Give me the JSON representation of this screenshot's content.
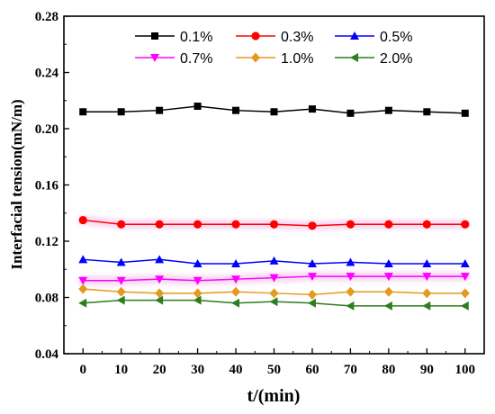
{
  "chart_data": {
    "type": "line",
    "xlabel": "t/(min)",
    "ylabel": "Interfacial tension(mN/m)",
    "xlim": [
      -5,
      105
    ],
    "ylim": [
      0.04,
      0.28
    ],
    "x": [
      0,
      10,
      20,
      30,
      40,
      50,
      60,
      70,
      80,
      90,
      100
    ],
    "xticks": [
      "0",
      "10",
      "20",
      "30",
      "40",
      "50",
      "60",
      "70",
      "80",
      "90",
      "100"
    ],
    "yticks": [
      "0.04",
      "0.08",
      "0.12",
      "0.16",
      "0.20",
      "0.24",
      "0.28"
    ],
    "grid": false,
    "legend_position": "top-center",
    "series": [
      {
        "name": "0.1%",
        "color": "#000000",
        "marker": "square",
        "values": [
          0.212,
          0.212,
          0.213,
          0.216,
          0.213,
          0.212,
          0.214,
          0.211,
          0.213,
          0.212,
          0.211
        ]
      },
      {
        "name": "0.3%",
        "color": "#ff0000",
        "marker": "circle",
        "values": [
          0.135,
          0.132,
          0.132,
          0.132,
          0.132,
          0.132,
          0.131,
          0.132,
          0.132,
          0.132,
          0.132
        ]
      },
      {
        "name": "0.5%",
        "color": "#0000ff",
        "marker": "triangle-up",
        "values": [
          0.107,
          0.105,
          0.107,
          0.104,
          0.104,
          0.106,
          0.104,
          0.105,
          0.104,
          0.104,
          0.104
        ]
      },
      {
        "name": "0.7%",
        "color": "#ff00ff",
        "marker": "triangle-down",
        "values": [
          0.092,
          0.092,
          0.093,
          0.092,
          0.093,
          0.094,
          0.095,
          0.095,
          0.095,
          0.095,
          0.095
        ]
      },
      {
        "name": "1.0%",
        "color": "#e39a1f",
        "marker": "diamond",
        "values": [
          0.086,
          0.084,
          0.083,
          0.083,
          0.084,
          0.083,
          0.082,
          0.084,
          0.084,
          0.083,
          0.083
        ]
      },
      {
        "name": "2.0%",
        "color": "#2e7d1e",
        "marker": "triangle-left",
        "values": [
          0.076,
          0.078,
          0.078,
          0.078,
          0.076,
          0.077,
          0.076,
          0.074,
          0.074,
          0.074,
          0.074
        ]
      }
    ]
  }
}
